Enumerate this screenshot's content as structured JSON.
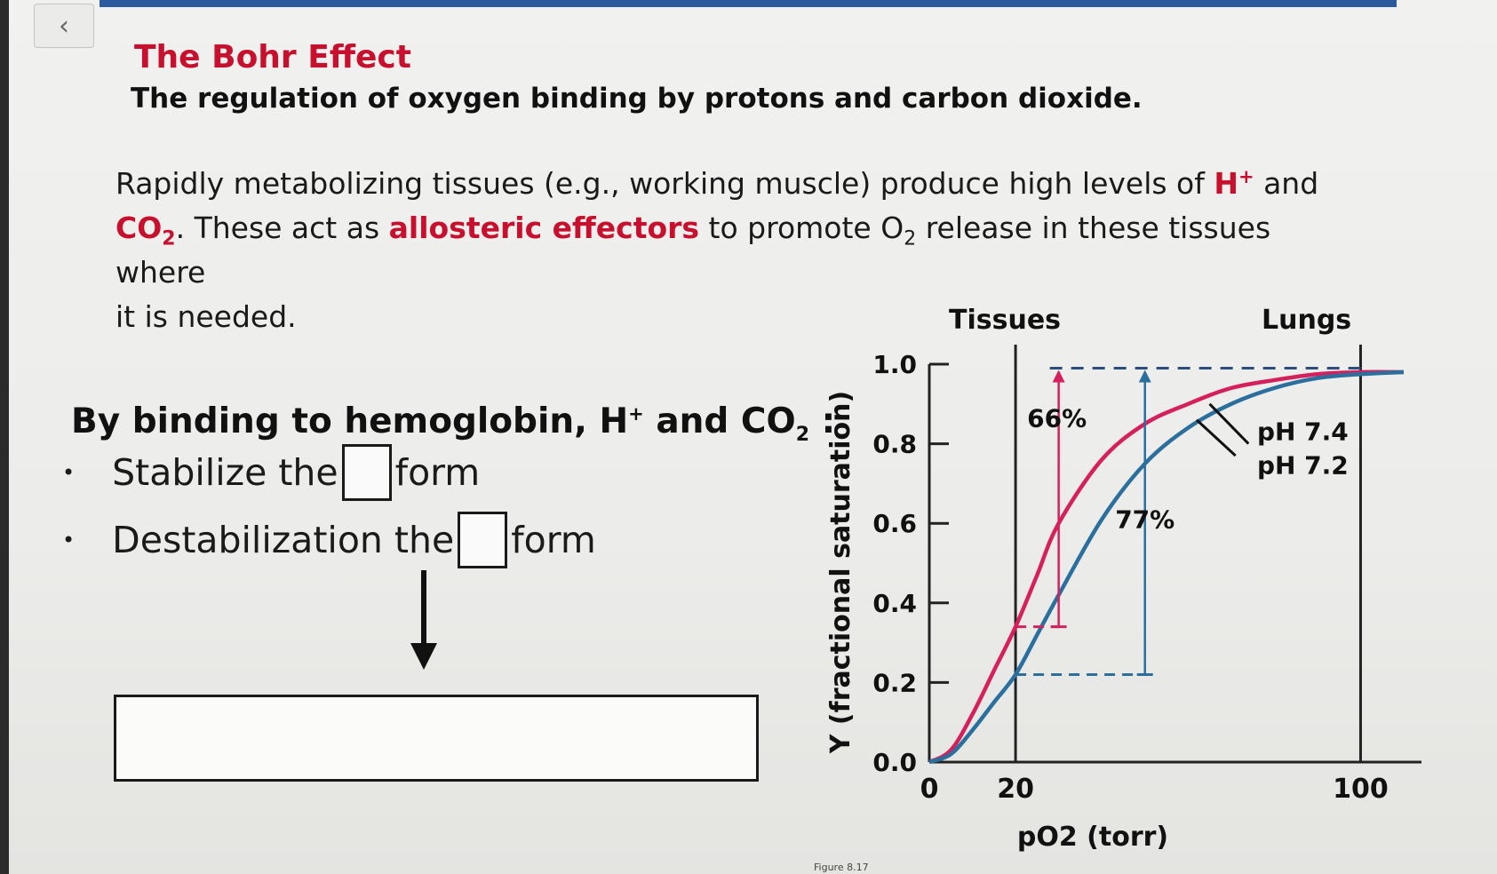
{
  "nav": {
    "back_icon": "chevron-left-icon",
    "back_glyph": "‹"
  },
  "colors": {
    "accent_red": "#c8102e",
    "curve_ph74": "#d6205e",
    "curve_ph72": "#2a6f9e",
    "topbar": "#2c5a9e"
  },
  "header": {
    "title": "The Bohr Effect",
    "subtitle": "The regulation of oxygen binding by protons and carbon dioxide."
  },
  "paragraph": {
    "p1": "Rapidly metabolizing tissues (e.g., working muscle) produce high levels of ",
    "h": "H",
    "plus": "+",
    "and": " and",
    "co": "CO",
    "two": "2",
    "p2": ". These act as ",
    "allosteric": "allosteric effectors",
    "p3": " to promote O",
    "p4": " release in these tissues where",
    "p5": "it is needed."
  },
  "binding": {
    "heading_a": "By binding to hemoglobin, H",
    "plus": "+",
    "heading_b": " and CO",
    "two": "2",
    "heading_c": " :",
    "bullet1_a": "Stabilize the",
    "bullet1_b": "form",
    "bullet2_a": "Destabilization the",
    "bullet2_b": "form",
    "bullet_glyph": "•"
  },
  "chart_data": {
    "type": "line",
    "xlabel": "pO2 (torr)",
    "ylabel": "Y (fractional saturation)",
    "xlim": [
      0,
      110
    ],
    "ylim": [
      0,
      1.0
    ],
    "x_ticks": [
      "0",
      "20",
      "100"
    ],
    "y_ticks": [
      "1.0",
      "0.8",
      "0.6",
      "0.4",
      "0.2",
      "0.0"
    ],
    "grid": false,
    "region_labels": {
      "tissues": "Tissues",
      "lungs": "Lungs"
    },
    "reference_lines_x": [
      20,
      100
    ],
    "series": [
      {
        "name": "pH 7.4",
        "x": [
          0,
          5,
          10,
          15,
          20,
          25,
          30,
          40,
          50,
          60,
          70,
          80,
          90,
          100,
          110
        ],
        "y": [
          0.0,
          0.03,
          0.12,
          0.23,
          0.34,
          0.47,
          0.6,
          0.76,
          0.85,
          0.9,
          0.94,
          0.96,
          0.975,
          0.98,
          0.98
        ]
      },
      {
        "name": "pH 7.2",
        "x": [
          0,
          5,
          10,
          15,
          20,
          25,
          30,
          40,
          50,
          60,
          70,
          80,
          90,
          100,
          110
        ],
        "y": [
          0.0,
          0.02,
          0.08,
          0.15,
          0.22,
          0.32,
          0.42,
          0.61,
          0.75,
          0.84,
          0.9,
          0.94,
          0.965,
          0.975,
          0.98
        ]
      }
    ],
    "annotations": [
      {
        "text": "66%",
        "x": 30,
        "y1": 0.34,
        "y2": 0.99
      },
      {
        "text": "77%",
        "x": 50,
        "y1": 0.22,
        "y2": 0.99
      }
    ]
  },
  "footer": {
    "figure_caption": "Figure 8.17"
  }
}
